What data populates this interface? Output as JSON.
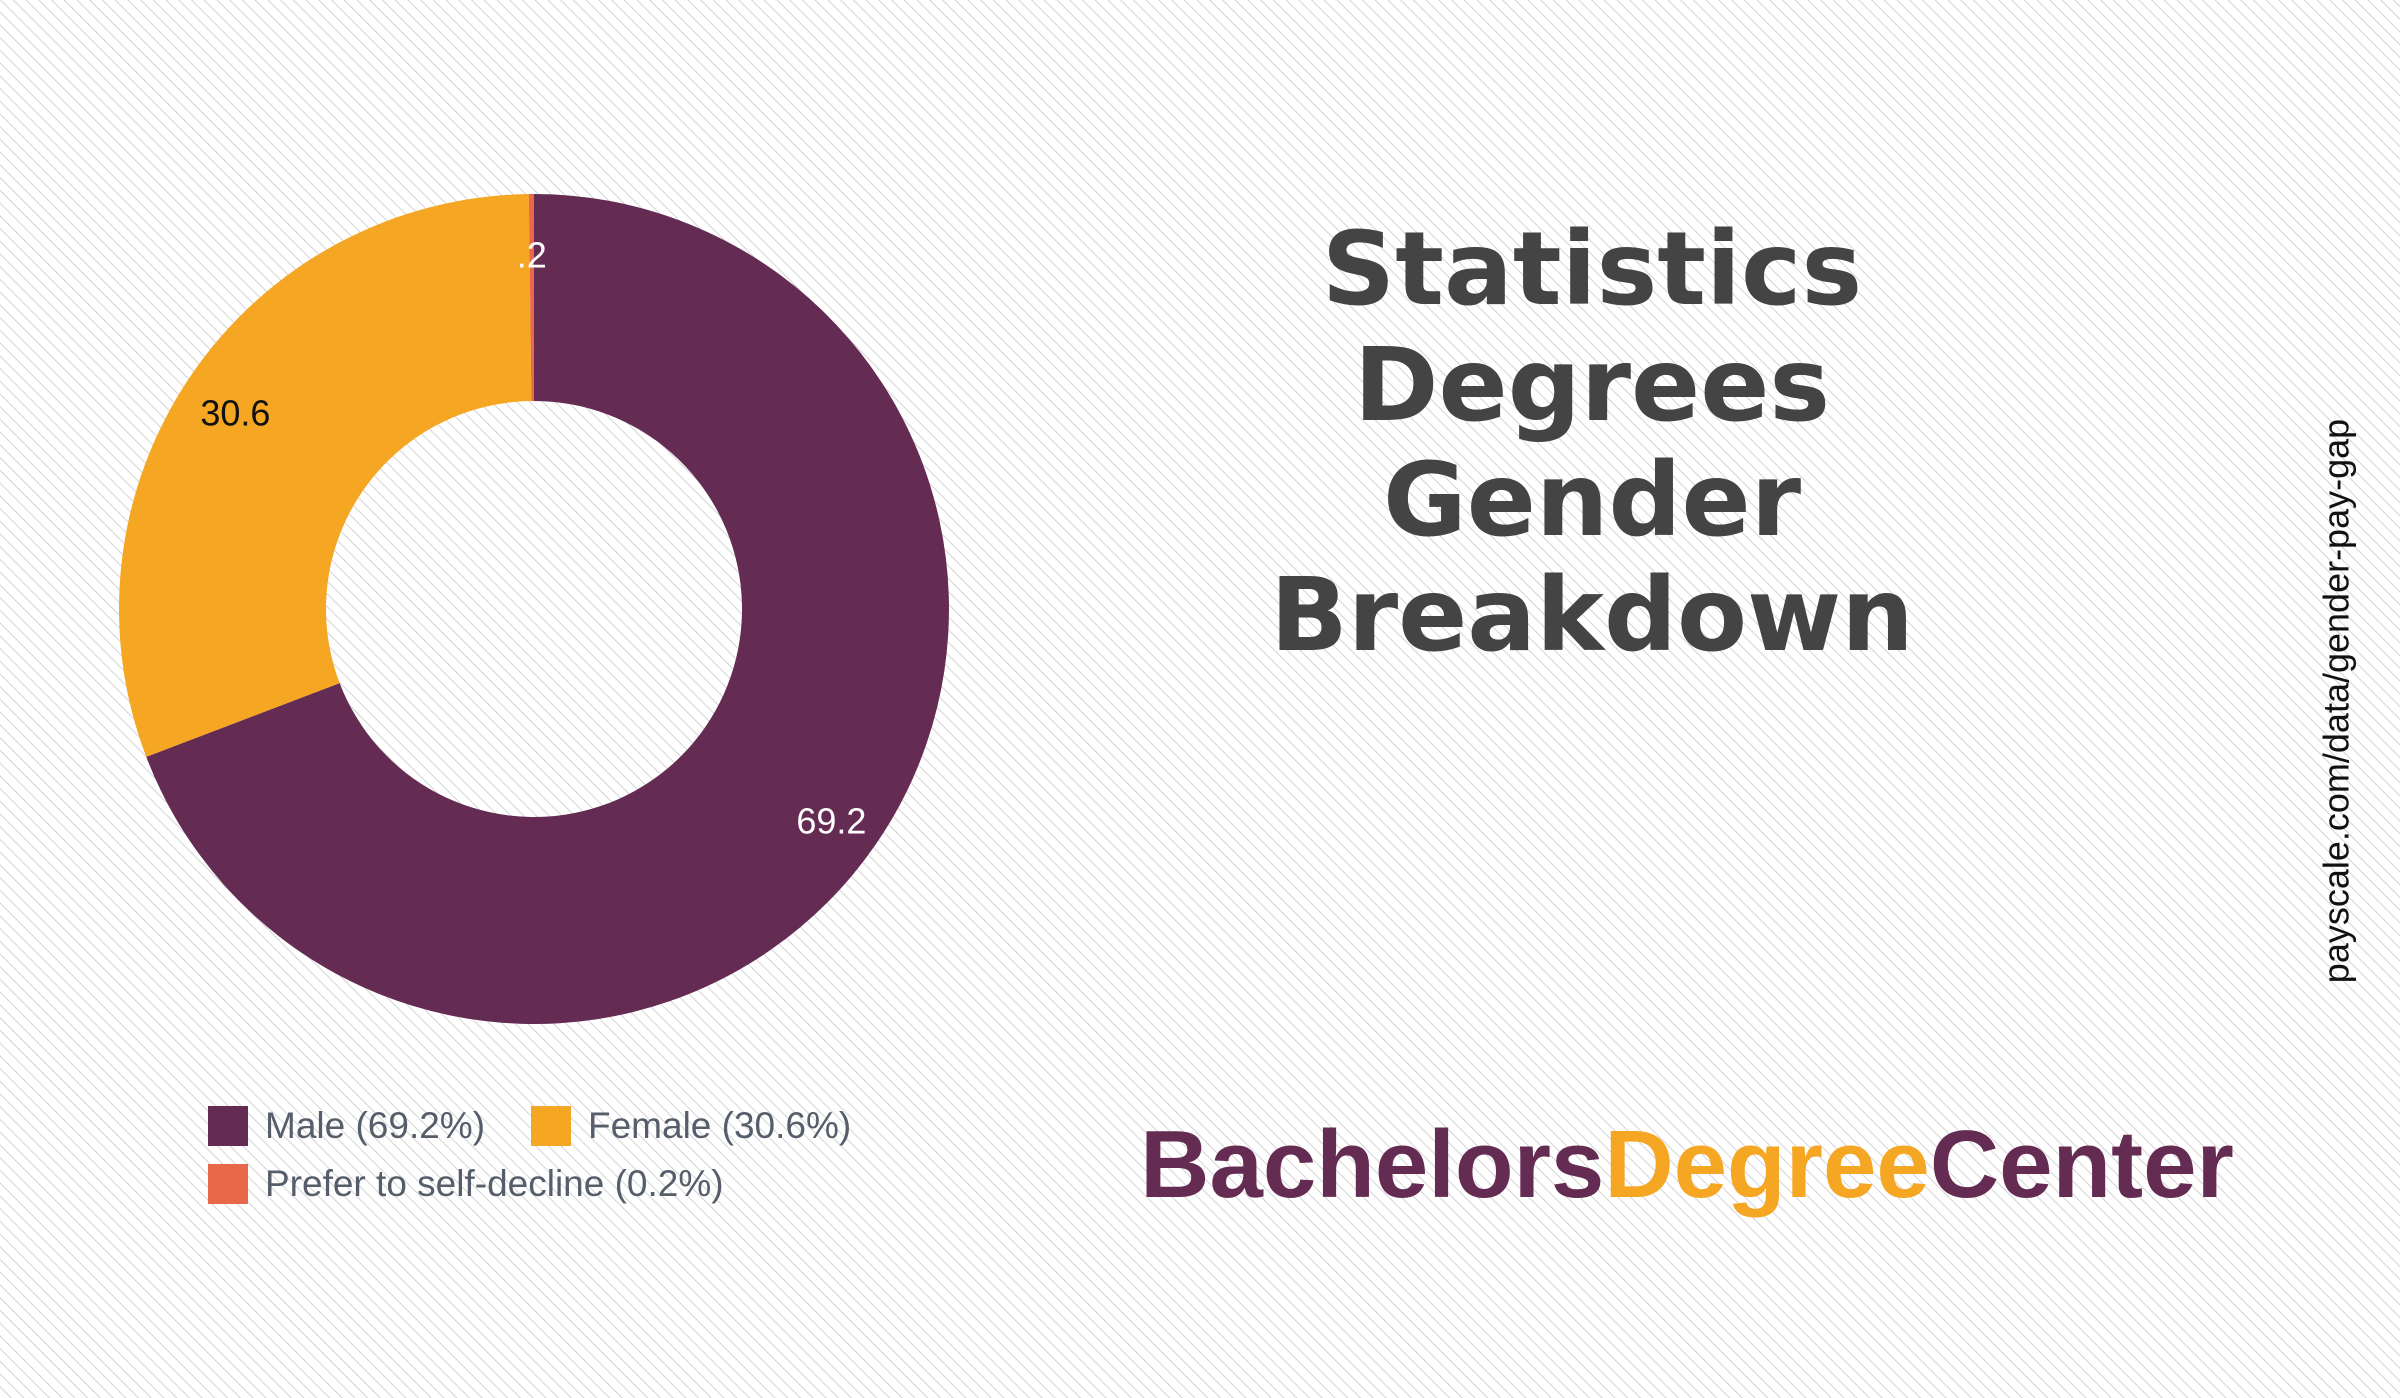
{
  "chart_data": {
    "type": "donut",
    "categories": [
      "Male (69.2%)",
      "Female (30.6%)",
      "Prefer to self-decline (0.2%)"
    ],
    "values": [
      69.2,
      30.6,
      0.2
    ],
    "value_labels": [
      "69.2",
      "30.6",
      ".2"
    ],
    "colors": [
      "#652c53",
      "#f5a623",
      "#e8694a"
    ],
    "label_colors": [
      "#ffffff",
      "#111111",
      "#ffffff"
    ]
  },
  "title": [
    "Statistics",
    "Degrees",
    "Gender",
    "Breakdown"
  ],
  "brand": [
    {
      "text": "Bachelors",
      "color": "#652c53"
    },
    {
      "text": "Degree",
      "color": "#f5a623"
    },
    {
      "text": "Center",
      "color": "#652c53"
    }
  ],
  "source": "payscale.com/data/gender-pay-gap"
}
